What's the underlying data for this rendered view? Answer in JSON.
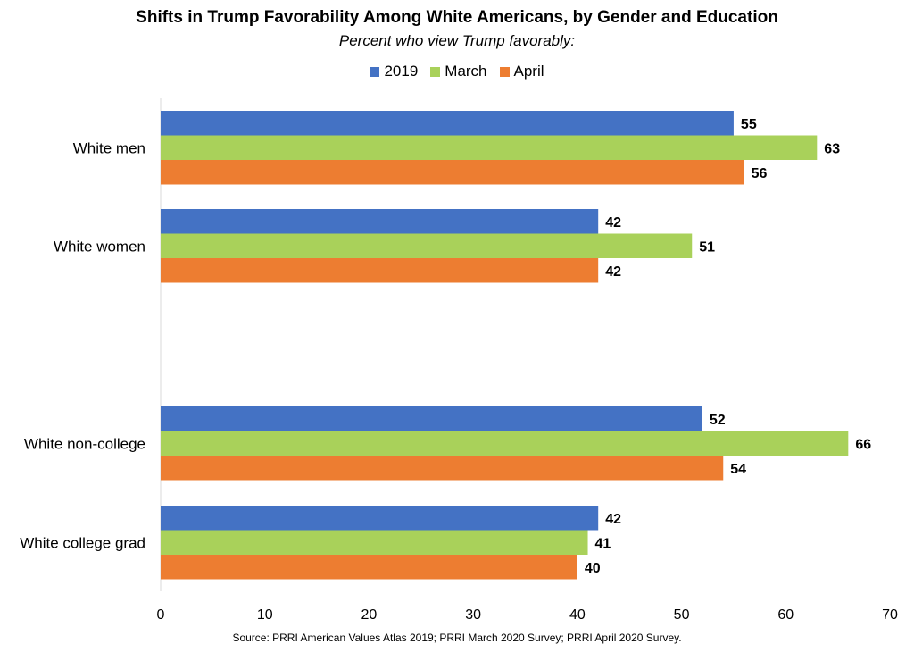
{
  "chart_data": {
    "type": "bar",
    "orientation": "horizontal",
    "title": "Shifts in Trump Favorability Among White Americans, by Gender and Education",
    "subtitle": "Percent who view Trump favorably:",
    "categories": [
      "White men",
      "White women",
      "White non-college",
      "White college grad"
    ],
    "series": [
      {
        "name": "2019",
        "color": "#4472C4",
        "values": [
          55,
          42,
          52,
          42
        ]
      },
      {
        "name": "March",
        "color": "#A9D15A",
        "values": [
          63,
          51,
          66,
          41
        ]
      },
      {
        "name": "April",
        "color": "#ED7D31",
        "values": [
          56,
          42,
          54,
          40
        ]
      }
    ],
    "xlim": [
      0,
      70
    ],
    "xticks": [
      0,
      10,
      20,
      30,
      40,
      50,
      60,
      70
    ],
    "grid": false,
    "legend_position": "top"
  },
  "source": "Source: PRRI American Values Atlas 2019; PRRI March 2020 Survey; PRRI April 2020 Survey."
}
